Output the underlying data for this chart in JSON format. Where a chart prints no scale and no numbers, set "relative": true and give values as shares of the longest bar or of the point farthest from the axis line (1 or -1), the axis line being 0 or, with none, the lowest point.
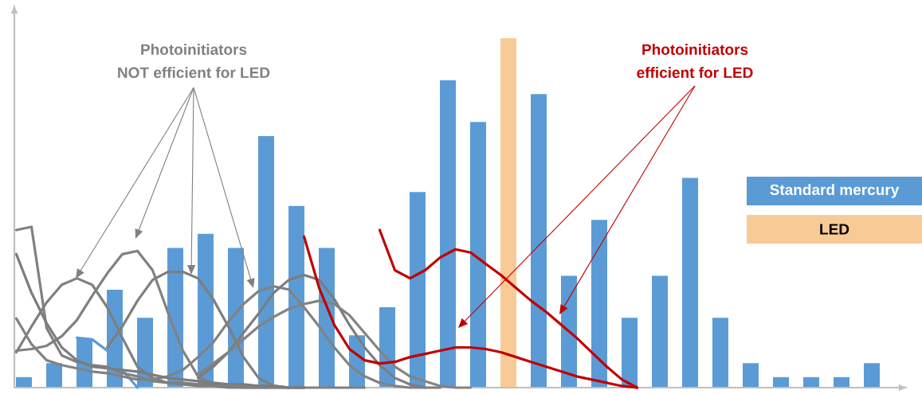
{
  "chart_data": [
    {
      "type": "bar",
      "relative": true,
      "categories": [
        null,
        null,
        null,
        null,
        null,
        null,
        null,
        null,
        null,
        null,
        null,
        null,
        null,
        null,
        null,
        null,
        null,
        null,
        null,
        null,
        null,
        null,
        null,
        null,
        null,
        null,
        null,
        null,
        null
      ],
      "values": [
        0.03,
        0.07,
        0.14,
        0.28,
        0.2,
        0.4,
        0.44,
        0.4,
        0.72,
        0.52,
        0.4,
        0.15,
        0.23,
        0.56,
        0.88,
        0.76,
        1,
        0.84,
        0.32,
        0.48,
        0.2,
        0.32,
        0.6,
        0.2,
        0.07,
        0.03,
        0.03,
        0.03,
        0.07
      ],
      "colors": [
        "#5b9bd5",
        "#5b9bd5",
        "#5b9bd5",
        "#5b9bd5",
        "#5b9bd5",
        "#5b9bd5",
        "#5b9bd5",
        "#5b9bd5",
        "#5b9bd5",
        "#5b9bd5",
        "#5b9bd5",
        "#5b9bd5",
        "#5b9bd5",
        "#5b9bd5",
        "#5b9bd5",
        "#5b9bd5",
        "#f8cb96",
        "#5b9bd5",
        "#5b9bd5",
        "#5b9bd5",
        "#5b9bd5",
        "#5b9bd5",
        "#5b9bd5",
        "#5b9bd5",
        "#5b9bd5",
        "#5b9bd5",
        "#5b9bd5",
        "#5b9bd5",
        "#5b9bd5"
      ],
      "annotations": [
        "Standard mercury",
        "LED"
      ]
    },
    {
      "type": "line",
      "relative": true,
      "categories": [
        null,
        null,
        null,
        null,
        null,
        null,
        null,
        null,
        null,
        null,
        null,
        null,
        null,
        null,
        null,
        null,
        null,
        null,
        null,
        null,
        null,
        null,
        null,
        null,
        null,
        null,
        null,
        null,
        null,
        null,
        null,
        null,
        null,
        null,
        null,
        null,
        null,
        null,
        null,
        null,
        null,
        null
      ],
      "annotations": [
        "Photoinitiators",
        "NOT efficient for LED",
        "Photoinitiators",
        "efficient for LED"
      ],
      "series": [
        {
          "color": "#5b9bd5",
          "values": [
            null,
            null,
            null,
            null,
            0.31,
            0.3,
            0.23,
            0.11,
            0,
            null,
            null,
            null,
            null,
            null,
            null,
            null,
            null,
            null,
            null,
            null,
            null,
            null,
            null,
            null,
            null,
            null,
            null,
            null,
            null,
            null,
            null,
            null,
            null,
            null,
            null,
            null,
            null,
            null,
            null,
            null,
            null,
            null
          ]
        },
        {
          "color": "#808080",
          "values": [
            0.98,
            1,
            0.37,
            0.2,
            0.16,
            0.14,
            0.13,
            0.09,
            0.07,
            0.04,
            0.03,
            0.03,
            0.02,
            0.02,
            0.01,
            0.01,
            0.01,
            0.01,
            0,
            0,
            0,
            0,
            0,
            0,
            null,
            null,
            null,
            null,
            null,
            null,
            null,
            null,
            null,
            null,
            null,
            null,
            null,
            null,
            null,
            null,
            null,
            null
          ]
        },
        {
          "color": "#7f7f7f",
          "values": [
            0.22,
            0.38,
            0.53,
            0.64,
            0.68,
            0.64,
            0.5,
            0.31,
            0.13,
            0.06,
            0.03,
            0.02,
            0.01,
            0.01,
            0,
            0,
            0,
            0,
            0,
            0,
            null,
            null,
            null,
            null,
            null,
            null,
            null,
            null,
            null,
            null,
            null,
            null,
            null,
            null,
            null,
            null,
            null,
            null,
            null,
            null,
            null,
            null
          ]
        },
        {
          "color": "#818181",
          "values": [
            0.23,
            0.24,
            0.26,
            0.32,
            0.42,
            0.57,
            0.71,
            0.83,
            0.85,
            0.73,
            0.47,
            0.23,
            0.07,
            0.02,
            0.01,
            0,
            0,
            0,
            0,
            null,
            null,
            null,
            null,
            null,
            null,
            null,
            null,
            null,
            null,
            null,
            null,
            null,
            null,
            null,
            null,
            null,
            null,
            null,
            null,
            null,
            null,
            null
          ]
        },
        {
          "color": "#7e7e7e",
          "values": [
            null,
            null,
            null,
            null,
            null,
            null,
            0.25,
            0.38,
            0.54,
            0.67,
            0.72,
            0.72,
            0.68,
            0.55,
            0.38,
            0.19,
            0.06,
            0.01,
            0,
            null,
            null,
            null,
            null,
            null,
            null,
            null,
            null,
            null,
            null,
            null,
            null,
            null,
            null,
            null,
            null,
            null,
            null,
            null,
            null,
            null,
            null,
            null
          ]
        },
        {
          "color": "#828282",
          "values": [
            0.43,
            0.27,
            0.17,
            0.14,
            0.12,
            0.1,
            0.09,
            0.07,
            0.05,
            0.05,
            0.07,
            0.11,
            0.19,
            0.28,
            0.41,
            0.52,
            0.6,
            0.63,
            0.61,
            0.5,
            0.38,
            0.25,
            0.14,
            0.07,
            0.03,
            0.01,
            0,
            0,
            null,
            null,
            null,
            null,
            null,
            null,
            null,
            null,
            null,
            null,
            null,
            null,
            null,
            null
          ]
        },
        {
          "color": "#7d7d7d",
          "values": [
            null,
            null,
            null,
            null,
            null,
            null,
            null,
            null,
            null,
            null,
            null,
            null,
            0.06,
            0.13,
            0.22,
            0.34,
            0.46,
            0.59,
            0.67,
            0.7,
            0.67,
            0.55,
            0.39,
            0.25,
            0.14,
            0.06,
            0.02,
            0,
            0,
            null,
            null,
            null,
            null,
            null,
            null,
            null,
            null,
            null,
            null,
            null,
            null,
            null
          ]
        },
        {
          "color": "#838383",
          "values": [
            null,
            null,
            null,
            null,
            null,
            null,
            null,
            null,
            null,
            null,
            null,
            null,
            0.08,
            0.15,
            0.22,
            0.3,
            0.38,
            0.44,
            0.49,
            0.52,
            0.54,
            0.52,
            0.45,
            0.34,
            0.23,
            0.13,
            0.07,
            0.04,
            0.01,
            0,
            0,
            null,
            null,
            null,
            null,
            null,
            null,
            null,
            null,
            null,
            null,
            null
          ]
        },
        {
          "color": "#7c7c7c",
          "values": [
            0.83,
            0.59,
            0.4,
            0.25,
            0.17,
            0.13,
            0.12,
            0.11,
            0.1,
            0.08,
            0.06,
            0.05,
            0.04,
            0.03,
            0.02,
            0.02,
            0.01,
            0.01,
            0,
            0,
            null,
            null,
            null,
            null,
            null,
            null,
            null,
            null,
            null,
            null,
            null,
            null,
            null,
            null,
            null,
            null,
            null,
            null,
            null,
            null,
            null,
            null
          ]
        },
        {
          "color": "#c00000",
          "values": [
            null,
            null,
            null,
            null,
            null,
            null,
            null,
            null,
            null,
            null,
            null,
            null,
            null,
            null,
            null,
            null,
            null,
            null,
            null,
            0.94,
            0.62,
            0.39,
            0.24,
            0.17,
            0.15,
            0.16,
            0.19,
            0.21,
            0.23,
            0.25,
            0.25,
            0.24,
            0.22,
            0.19,
            0.16,
            0.13,
            0.1,
            0.07,
            0.05,
            0.03,
            0.01,
            0
          ]
        },
        {
          "color": "#c10000",
          "values": [
            null,
            null,
            null,
            null,
            null,
            null,
            null,
            null,
            null,
            null,
            null,
            null,
            null,
            null,
            null,
            null,
            null,
            null,
            null,
            null,
            null,
            null,
            null,
            null,
            0.98,
            0.73,
            0.68,
            0.73,
            0.81,
            0.86,
            0.84,
            0.77,
            0.7,
            0.62,
            0.54,
            0.47,
            0.39,
            0.31,
            0.22,
            0.13,
            0.05,
            0
          ]
        }
      ]
    }
  ]
}
